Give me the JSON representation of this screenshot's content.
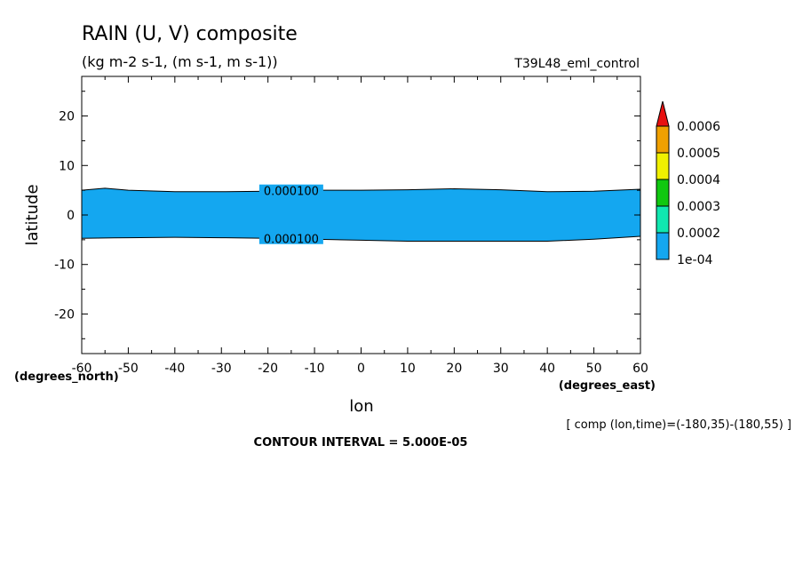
{
  "chart_data": {
    "type": "contour",
    "title": "RAIN (U, V) composite",
    "subtitle": "(kg m-2 s-1, (m s-1, m s-1))",
    "run_label": "T39L48_eml_control",
    "xlabel": "lon",
    "ylabel": "latitude",
    "x_units_label": "(degrees_east)",
    "y_units_label": "(degrees_north)",
    "xlim": [
      -60,
      60
    ],
    "ylim": [
      -28,
      28
    ],
    "xticks": [
      -60,
      -50,
      -40,
      -30,
      -20,
      -10,
      0,
      10,
      20,
      30,
      40,
      50,
      60
    ],
    "xtick_labels": [
      "-60",
      "-50",
      "-40",
      "-30",
      "-20",
      "-10",
      "0",
      "10",
      "20",
      "30",
      "40",
      "50",
      "60"
    ],
    "yticks": [
      20,
      10,
      0,
      -10,
      -20
    ],
    "ytick_labels": [
      "20",
      "10",
      "0",
      "-10",
      "-20"
    ],
    "contour_level": "0.000100",
    "band": {
      "fill_color": "#14a7f0",
      "north_edge": [
        {
          "x": -60,
          "y": 5.0
        },
        {
          "x": -55,
          "y": 5.4
        },
        {
          "x": -50,
          "y": 5.0
        },
        {
          "x": -40,
          "y": 4.7
        },
        {
          "x": -30,
          "y": 4.7
        },
        {
          "x": -20,
          "y": 4.8
        },
        {
          "x": -10,
          "y": 5.0
        },
        {
          "x": 0,
          "y": 5.0
        },
        {
          "x": 10,
          "y": 5.1
        },
        {
          "x": 20,
          "y": 5.3
        },
        {
          "x": 30,
          "y": 5.1
        },
        {
          "x": 40,
          "y": 4.7
        },
        {
          "x": 50,
          "y": 4.8
        },
        {
          "x": 60,
          "y": 5.2
        }
      ],
      "south_edge": [
        {
          "x": -60,
          "y": -4.7
        },
        {
          "x": -50,
          "y": -4.6
        },
        {
          "x": -40,
          "y": -4.5
        },
        {
          "x": -30,
          "y": -4.6
        },
        {
          "x": -20,
          "y": -4.7
        },
        {
          "x": -10,
          "y": -4.9
        },
        {
          "x": 0,
          "y": -5.1
        },
        {
          "x": 10,
          "y": -5.3
        },
        {
          "x": 20,
          "y": -5.3
        },
        {
          "x": 30,
          "y": -5.3
        },
        {
          "x": 40,
          "y": -5.3
        },
        {
          "x": 50,
          "y": -4.9
        },
        {
          "x": 60,
          "y": -4.3
        }
      ]
    },
    "colorbar": {
      "levels": [
        "1e-04",
        "0.0002",
        "0.0003",
        "0.0004",
        "0.0005",
        "0.0006"
      ],
      "colors": [
        "#14a7f0",
        "#10e7b0",
        "#10c810",
        "#f0f000",
        "#f0a000",
        "#e81010"
      ]
    },
    "footer_note": "[ comp (lon,time)=(-180,35)-(180,55) ]",
    "contour_interval_text": "CONTOUR INTERVAL = 5.000E-05"
  }
}
